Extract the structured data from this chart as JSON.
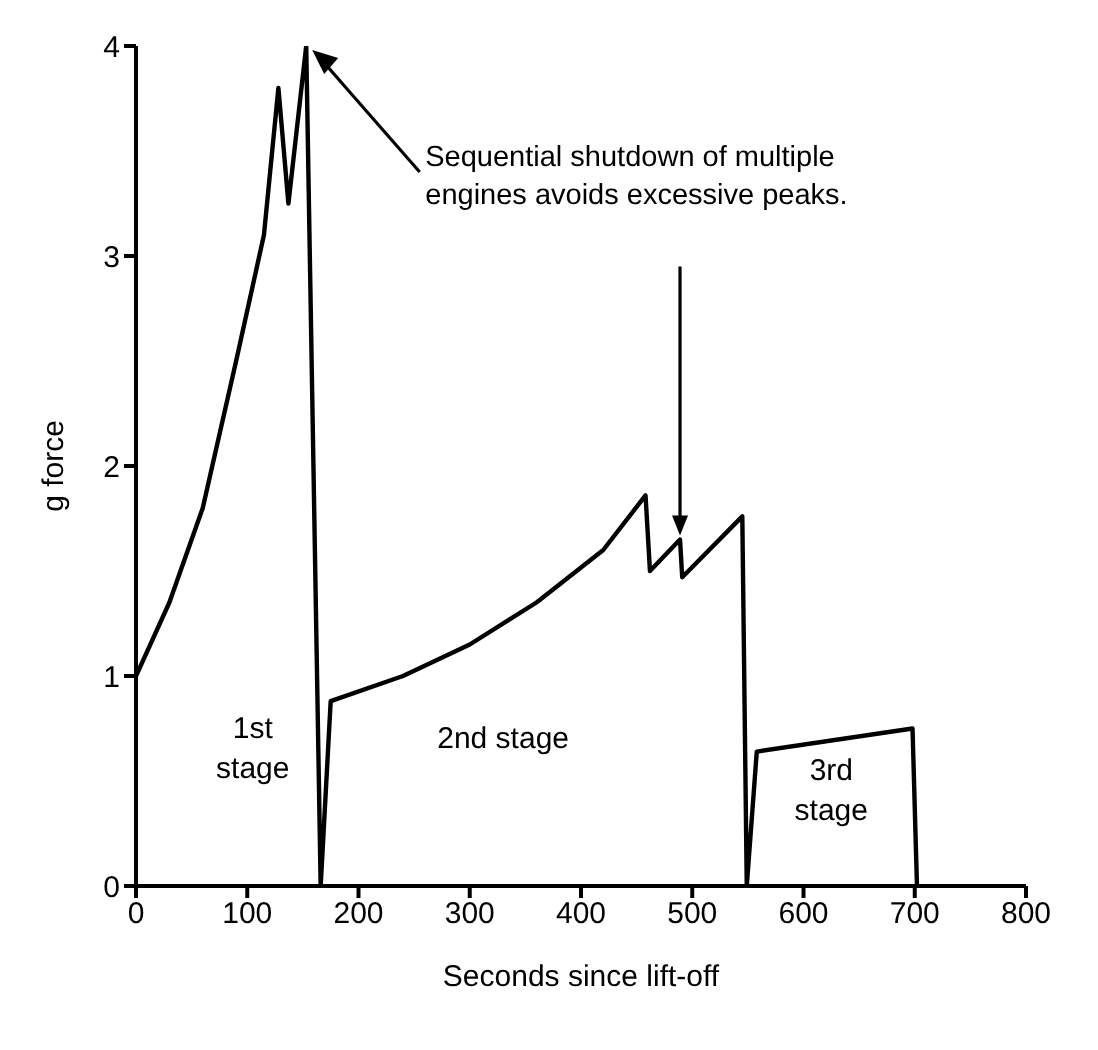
{
  "chart_data": {
    "type": "line",
    "xlabel": "Seconds since lift-off",
    "ylabel": "g force",
    "x": [
      0,
      30,
      60,
      90,
      115,
      128,
      137,
      153,
      166,
      175,
      240,
      300,
      360,
      420,
      458,
      462,
      489,
      491,
      545,
      549,
      558,
      698,
      702
    ],
    "series": [
      {
        "color": "#000000",
        "values": [
          1,
          1.35,
          1.8,
          2.5,
          3.1,
          3.8,
          3.25,
          4.0,
          0,
          0.88,
          1.0,
          1.15,
          1.35,
          1.6,
          1.86,
          1.5,
          1.65,
          1.47,
          1.76,
          0,
          0.64,
          0.75,
          0
        ]
      }
    ],
    "xlim": [
      0,
      800
    ],
    "xticks": [
      0,
      100,
      200,
      300,
      400,
      500,
      600,
      700,
      800
    ],
    "ylim": [
      0,
      4
    ],
    "yticks": [
      0,
      1,
      2,
      3,
      4
    ],
    "grid": false,
    "legend": false,
    "marker": "none",
    "line_style": "solid",
    "annotations": [
      "Sequential shutdown of multiple engines avoids excessive peaks.",
      "1st stage",
      "2nd stage",
      "3rd stage"
    ]
  }
}
